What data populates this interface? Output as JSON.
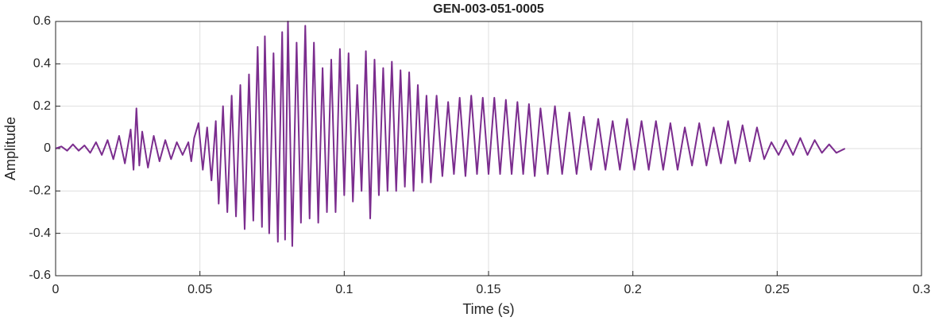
{
  "chart_data": {
    "type": "line",
    "title": "GEN-003-051-0005",
    "xlabel": "Time (s)",
    "ylabel": "Amplitude",
    "color": "#7b2d8e",
    "grid": true,
    "xlim": [
      0,
      0.3
    ],
    "xticks": [
      0,
      0.05,
      0.1,
      0.15,
      0.2,
      0.25,
      0.3
    ],
    "ylim": [
      -0.6,
      0.6
    ],
    "yticks": [
      -0.6,
      -0.4,
      -0.2,
      0,
      0.2,
      0.4,
      0.6
    ],
    "x": [
      0,
      0.002,
      0.004,
      0.006,
      0.008,
      0.01,
      0.012,
      0.014,
      0.016,
      0.018,
      0.02,
      0.022,
      0.024,
      0.026,
      0.027,
      0.028,
      0.029,
      0.03,
      0.032,
      0.034,
      0.036,
      0.038,
      0.04,
      0.042,
      0.044,
      0.046,
      0.047,
      0.048,
      0.0495,
      0.051,
      0.0525,
      0.054,
      0.0555,
      0.0565,
      0.058,
      0.0595,
      0.061,
      0.0625,
      0.064,
      0.0655,
      0.067,
      0.0685,
      0.07,
      0.0715,
      0.0725,
      0.074,
      0.0755,
      0.077,
      0.0785,
      0.0795,
      0.0805,
      0.082,
      0.0835,
      0.085,
      0.0865,
      0.088,
      0.0895,
      0.091,
      0.0925,
      0.094,
      0.0955,
      0.097,
      0.0985,
      0.1,
      0.1015,
      0.103,
      0.1045,
      0.106,
      0.1075,
      0.109,
      0.1105,
      0.112,
      0.1135,
      0.115,
      0.1165,
      0.118,
      0.1195,
      0.121,
      0.1225,
      0.124,
      0.1255,
      0.127,
      0.1285,
      0.13,
      0.132,
      0.134,
      0.136,
      0.138,
      0.14,
      0.142,
      0.144,
      0.146,
      0.148,
      0.15,
      0.152,
      0.154,
      0.156,
      0.158,
      0.16,
      0.162,
      0.164,
      0.166,
      0.168,
      0.1705,
      0.173,
      0.1755,
      0.178,
      0.1805,
      0.183,
      0.1855,
      0.188,
      0.1905,
      0.193,
      0.1955,
      0.198,
      0.2005,
      0.203,
      0.2055,
      0.208,
      0.2105,
      0.213,
      0.2155,
      0.218,
      0.2205,
      0.223,
      0.2255,
      0.228,
      0.2305,
      0.233,
      0.2355,
      0.238,
      0.2405,
      0.243,
      0.2455,
      0.248,
      0.2505,
      0.253,
      0.2555,
      0.258,
      0.2605,
      0.263,
      0.2655,
      0.268,
      0.2705,
      0.2735
    ],
    "values": [
      0,
      0.01,
      -0.01,
      0.02,
      -0.01,
      0.015,
      -0.02,
      0.03,
      -0.03,
      0.04,
      -0.05,
      0.06,
      -0.07,
      0.09,
      -0.1,
      0.19,
      -0.08,
      0.08,
      -0.09,
      0.06,
      -0.06,
      0.04,
      -0.05,
      0.03,
      -0.03,
      0.03,
      -0.06,
      0.05,
      0.12,
      -0.1,
      0.1,
      -0.15,
      0.13,
      -0.26,
      0.2,
      -0.3,
      0.25,
      -0.32,
      0.3,
      -0.38,
      0.35,
      -0.34,
      0.48,
      -0.37,
      0.53,
      -0.4,
      0.45,
      -0.44,
      0.55,
      -0.43,
      0.6,
      -0.46,
      0.5,
      -0.35,
      0.58,
      -0.33,
      0.5,
      -0.35,
      0.38,
      -0.3,
      0.42,
      -0.3,
      0.47,
      -0.22,
      0.45,
      -0.25,
      0.3,
      -0.2,
      0.46,
      -0.33,
      0.42,
      -0.22,
      0.38,
      -0.2,
      0.41,
      -0.2,
      0.37,
      -0.18,
      0.36,
      -0.2,
      0.3,
      -0.16,
      0.25,
      -0.16,
      0.25,
      -0.13,
      0.22,
      -0.12,
      0.24,
      -0.13,
      0.25,
      -0.12,
      0.24,
      -0.12,
      0.24,
      -0.12,
      0.23,
      -0.12,
      0.22,
      -0.12,
      0.21,
      -0.13,
      0.19,
      -0.12,
      0.2,
      -0.12,
      0.17,
      -0.12,
      0.15,
      -0.1,
      0.14,
      -0.1,
      0.13,
      -0.1,
      0.14,
      -0.1,
      0.13,
      -0.1,
      0.13,
      -0.1,
      0.12,
      -0.1,
      0.1,
      -0.08,
      0.12,
      -0.08,
      0.1,
      -0.07,
      0.13,
      -0.07,
      0.11,
      -0.06,
      0.1,
      -0.05,
      0.03,
      -0.03,
      0.04,
      -0.03,
      0.05,
      -0.03,
      0.04,
      -0.02,
      0.02,
      -0.02,
      0
    ]
  }
}
